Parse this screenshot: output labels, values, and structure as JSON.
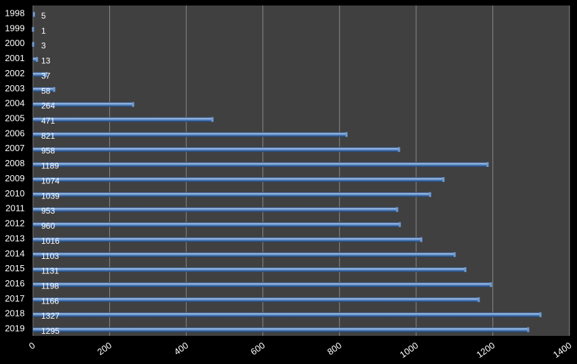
{
  "chart_data": {
    "type": "bar",
    "orientation": "horizontal",
    "categories": [
      "1998",
      "1999",
      "2000",
      "2001",
      "2002",
      "2003",
      "2004",
      "2005",
      "2006",
      "2007",
      "2008",
      "2009",
      "2010",
      "2011",
      "2012",
      "2013",
      "2014",
      "2015",
      "2016",
      "2017",
      "2018",
      "2019"
    ],
    "values": [
      5,
      1,
      3,
      13,
      37,
      58,
      264,
      471,
      821,
      958,
      1189,
      1074,
      1039,
      953,
      960,
      1016,
      1103,
      1131,
      1198,
      1166,
      1327,
      1295
    ],
    "x_ticks": [
      "0",
      "200",
      "400",
      "600",
      "800",
      "1000",
      "1200",
      "1400"
    ],
    "xlim": [
      0,
      1400
    ],
    "grid": true,
    "legend": "none",
    "colors": {
      "background": "#000000",
      "plot_area": "#404040",
      "bar": "#4f81bd",
      "bar_light": "#a7c4ec",
      "bar_dark": "#1f3f6e",
      "gridline": "#8a8a8a",
      "text": "#ffffff"
    }
  }
}
